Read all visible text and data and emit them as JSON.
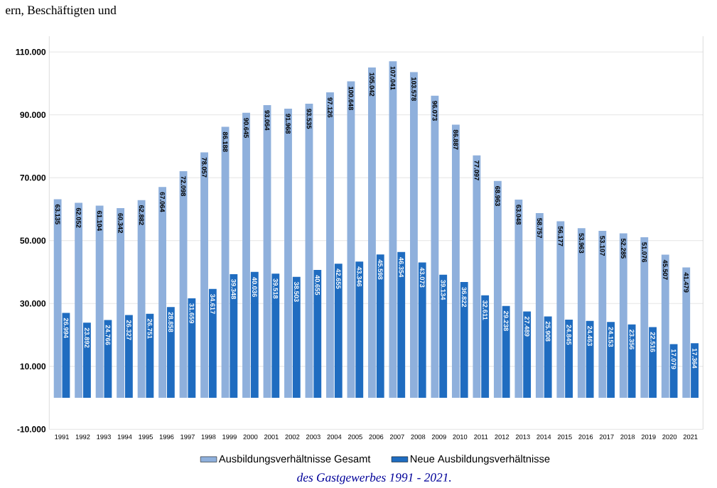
{
  "chart_data": {
    "type": "bar",
    "categories": [
      "1991",
      "1992",
      "1993",
      "1994",
      "1995",
      "1996",
      "1997",
      "1998",
      "1999",
      "2000",
      "2001",
      "2002",
      "2003",
      "2004",
      "2005",
      "2006",
      "2007",
      "2008",
      "2009",
      "2010",
      "2011",
      "2012",
      "2013",
      "2014",
      "2015",
      "2016",
      "2017",
      "2018",
      "2019",
      "2020",
      "2021"
    ],
    "series": [
      {
        "name": "Ausbildungsverhältnisse Gesamt",
        "color": "#8fb0dc",
        "values": [
          63135,
          62052,
          61104,
          60342,
          62882,
          67064,
          72098,
          78057,
          86188,
          90645,
          93064,
          91968,
          93535,
          97126,
          100648,
          105042,
          107041,
          103578,
          96073,
          86887,
          77097,
          68963,
          63048,
          58757,
          56177,
          53963,
          53107,
          52285,
          51076,
          45507,
          41479
        ],
        "value_labels": [
          "63.135",
          "62.052",
          "61.104",
          "60.342",
          "62.882",
          "67.064",
          "72.098",
          "78.057",
          "86.188",
          "90.645",
          "93.064",
          "91.968",
          "93.535",
          "97.126",
          "100.648",
          "105.042",
          "107.041",
          "103.578",
          "96.073",
          "86.887",
          "77.097",
          "68.963",
          "63.048",
          "58.757",
          "56.177",
          "53.963",
          "53.107",
          "52.285",
          "51.076",
          "45.507",
          "41.479"
        ]
      },
      {
        "name": "Neue Ausbildungsverhältnisse",
        "color": "#1f6cc0",
        "values": [
          26994,
          23892,
          24766,
          26327,
          26751,
          28858,
          31659,
          34617,
          39348,
          40036,
          39518,
          38503,
          40655,
          42655,
          43346,
          45598,
          46354,
          43073,
          39134,
          36822,
          32611,
          29238,
          27489,
          25908,
          24845,
          24463,
          24153,
          23356,
          22516,
          17079,
          17364
        ],
        "value_labels": [
          "26.994",
          "23.892",
          "24.766",
          "26.327",
          "26.751",
          "28.858",
          "31.659",
          "34.617",
          "39.348",
          "40.036",
          "39.518",
          "38.503",
          "40.655",
          "42.655",
          "43.346",
          "45.598",
          "46.354",
          "43.073",
          "39.134",
          "36.822",
          "32.611",
          "29.238",
          "27.489",
          "25.908",
          "24.845",
          "24.463",
          "24.153",
          "23.356",
          "22.516",
          "17.079",
          "17.364"
        ]
      }
    ],
    "ylim": [
      -10000,
      115000
    ],
    "yticks": [
      {
        "value": -10000,
        "label": "-10.000"
      },
      {
        "value": 10000,
        "label": "10.000"
      },
      {
        "value": 30000,
        "label": "30.000"
      },
      {
        "value": 50000,
        "label": "50.000"
      },
      {
        "value": 70000,
        "label": "70.000"
      },
      {
        "value": 90000,
        "label": "90.000"
      },
      {
        "value": 110000,
        "label": "110.000"
      }
    ],
    "grid": "y",
    "legend": "bottom",
    "annotations": [
      "ern, Beschäftigten und",
      "des Gastgewerbes 1991 - 2021."
    ]
  }
}
